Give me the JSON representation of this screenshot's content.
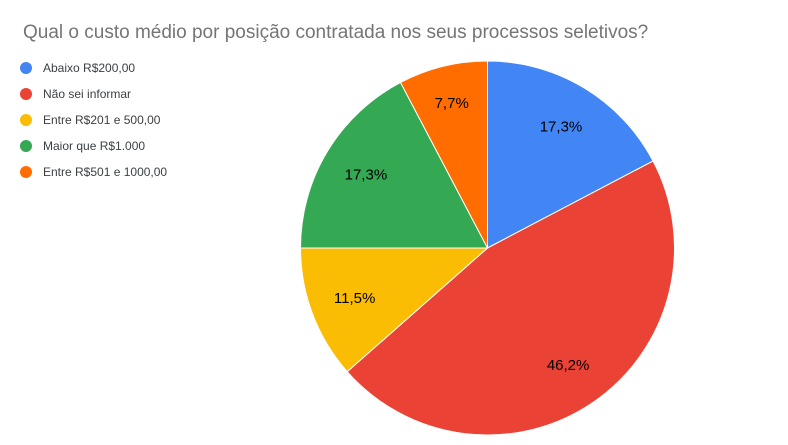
{
  "title": "Qual o custo médio por posição contratada nos seus processos seletivos?",
  "colors": {
    "background": "#ffffff",
    "title_text": "#757575",
    "legend_text": "#3c4043",
    "slice_label_text": "#000000",
    "slice_border": "#ffffff"
  },
  "chart_data": {
    "type": "pie",
    "title": "Qual o custo médio por posição contratada nos seus processos seletivos?",
    "legend_position": "left",
    "start_angle_deg": 0,
    "direction": "clockwise",
    "slices": [
      {
        "label": "Abaixo R$200,00",
        "value_pct": 17.3,
        "display": "17,3%",
        "color": "#4285F4"
      },
      {
        "label": "Não sei informar",
        "value_pct": 46.2,
        "display": "46,2%",
        "color": "#EA4335"
      },
      {
        "label": "Entre R$201 e 500,00",
        "value_pct": 11.5,
        "display": "11,5%",
        "color": "#FBBC04"
      },
      {
        "label": "Maior que R$1.000",
        "value_pct": 17.3,
        "display": "17,3%",
        "color": "#34A853"
      },
      {
        "label": "Entre R$501 e 1000,00",
        "value_pct": 7.7,
        "display": "7,7%",
        "color": "#FF6D01"
      }
    ]
  }
}
